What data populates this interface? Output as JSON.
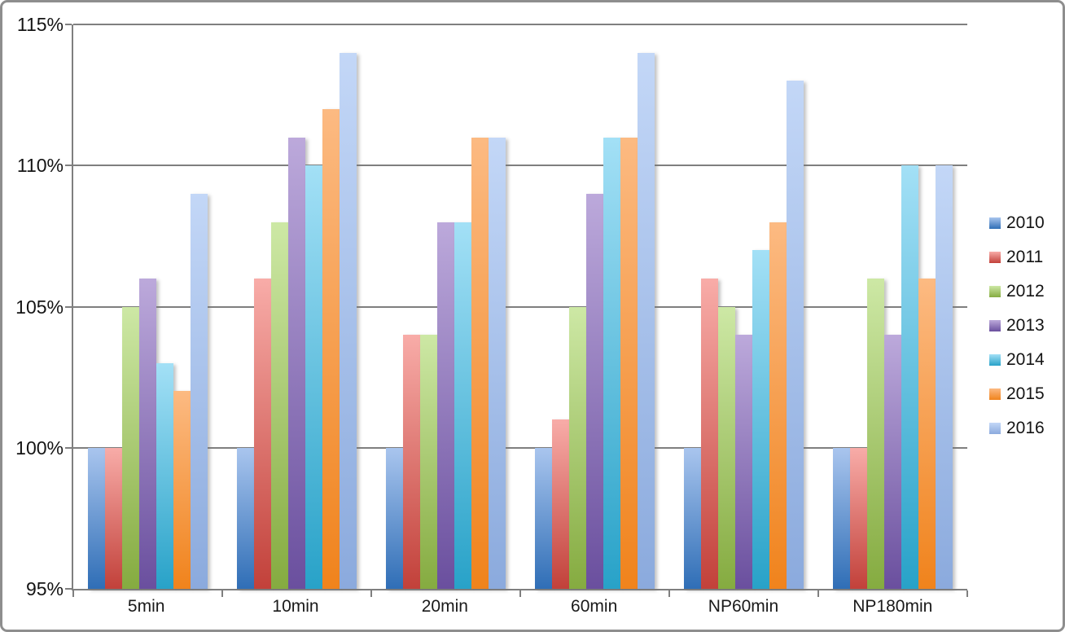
{
  "chart_data": {
    "type": "bar",
    "title": "",
    "categories": [
      "5min",
      "10min",
      "20min",
      "60min",
      "NP60min",
      "NP180min"
    ],
    "series": [
      {
        "name": "2010",
        "values": [
          100,
          100,
          100,
          100,
          100,
          100
        ],
        "color_top": "#A9C5EE",
        "color_bottom": "#2F6EB6"
      },
      {
        "name": "2011",
        "values": [
          100,
          106,
          104,
          101,
          106,
          100
        ],
        "color_top": "#F8ACA8",
        "color_bottom": "#C2413A"
      },
      {
        "name": "2012",
        "values": [
          105,
          108,
          104,
          105,
          105,
          106
        ],
        "color_top": "#CDE8A5",
        "color_bottom": "#85AB40"
      },
      {
        "name": "2013",
        "values": [
          106,
          111,
          108,
          109,
          104,
          104
        ],
        "color_top": "#BCA9DB",
        "color_bottom": "#6A4F9E"
      },
      {
        "name": "2014",
        "values": [
          103,
          110,
          108,
          111,
          107,
          110
        ],
        "color_top": "#A3E0F6",
        "color_bottom": "#28A2C8"
      },
      {
        "name": "2015",
        "values": [
          102,
          112,
          111,
          111,
          108,
          106
        ],
        "color_top": "#FCBA82",
        "color_bottom": "#F0831C"
      },
      {
        "name": "2016",
        "values": [
          109,
          114,
          111,
          114,
          113,
          110
        ],
        "color_top": "#C3D7F7",
        "color_bottom": "#8BAADD"
      }
    ],
    "y_axis": {
      "min": 95,
      "max": 115,
      "step": 5,
      "tick_labels": [
        "115%",
        "110%",
        "105%",
        "100%",
        "95%"
      ]
    },
    "grid": true,
    "legend_position": "right",
    "axis_color": "#7f7f7f",
    "text_color": "#141414"
  }
}
